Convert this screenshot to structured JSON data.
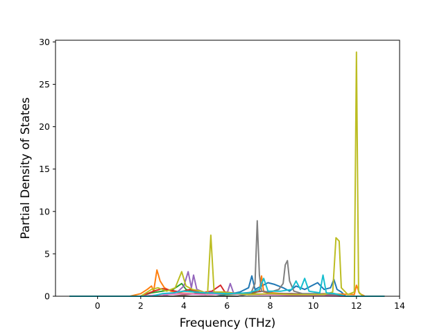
{
  "chart_data": {
    "type": "line",
    "xlabel": "Frequency (THz)",
    "ylabel": "Partial Density of States",
    "xlim": [
      -1.95,
      14.0
    ],
    "ylim": [
      0,
      30.2
    ],
    "xticks": [
      0,
      2,
      4,
      6,
      8,
      10,
      12,
      14
    ],
    "yticks": [
      0,
      5,
      10,
      15,
      20,
      25,
      30
    ],
    "grid": false,
    "legend": "none",
    "series": [
      {
        "color": "#1f77b4",
        "points": [
          [
            -1.3,
            0
          ],
          [
            5.5,
            0
          ],
          [
            6.2,
            0.3
          ],
          [
            6.6,
            0.5
          ],
          [
            7.0,
            1.0
          ],
          [
            7.15,
            2.4
          ],
          [
            7.3,
            0.8
          ],
          [
            7.6,
            1.2
          ],
          [
            7.9,
            1.6
          ],
          [
            8.2,
            1.4
          ],
          [
            8.6,
            1.0
          ],
          [
            8.9,
            0.6
          ],
          [
            9.2,
            1.2
          ],
          [
            9.6,
            0.8
          ],
          [
            9.9,
            1.2
          ],
          [
            10.2,
            1.6
          ],
          [
            10.5,
            0.8
          ],
          [
            10.8,
            1.0
          ],
          [
            10.95,
            2.0
          ],
          [
            11.1,
            0.8
          ],
          [
            11.3,
            0.5
          ],
          [
            11.5,
            0
          ],
          [
            13.3,
            0
          ]
        ]
      },
      {
        "color": "#ff7f0e",
        "points": [
          [
            -1.3,
            0
          ],
          [
            1.5,
            0
          ],
          [
            2.0,
            0.3
          ],
          [
            2.3,
            0.8
          ],
          [
            2.5,
            1.2
          ],
          [
            2.6,
            0.6
          ],
          [
            2.75,
            3.1
          ],
          [
            2.9,
            1.8
          ],
          [
            3.1,
            1.0
          ],
          [
            3.4,
            0.6
          ],
          [
            3.8,
            0.4
          ],
          [
            4.3,
            0.3
          ],
          [
            5.0,
            0.2
          ],
          [
            6.0,
            0.3
          ],
          [
            7.0,
            0.2
          ],
          [
            7.5,
            0.6
          ],
          [
            7.6,
            2.4
          ],
          [
            7.7,
            0.5
          ],
          [
            9.0,
            0.2
          ],
          [
            10.5,
            0.3
          ],
          [
            11.9,
            0.2
          ],
          [
            12.0,
            1.3
          ],
          [
            12.15,
            0.3
          ],
          [
            12.4,
            0
          ],
          [
            13.3,
            0
          ]
        ]
      },
      {
        "color": "#2ca02c",
        "points": [
          [
            -1.3,
            0
          ],
          [
            2.0,
            0
          ],
          [
            2.5,
            0.4
          ],
          [
            3.0,
            0.6
          ],
          [
            3.5,
            0.8
          ],
          [
            3.9,
            1.5
          ],
          [
            4.1,
            0.8
          ],
          [
            4.6,
            0.4
          ],
          [
            5.0,
            0.3
          ],
          [
            6.0,
            0.2
          ],
          [
            7.0,
            0.3
          ],
          [
            8.0,
            0.2
          ],
          [
            9.0,
            0.2
          ],
          [
            10.0,
            0.2
          ],
          [
            11.5,
            0
          ],
          [
            13.3,
            0
          ]
        ]
      },
      {
        "color": "#d62728",
        "points": [
          [
            -1.3,
            0
          ],
          [
            2.0,
            0
          ],
          [
            2.6,
            0.6
          ],
          [
            3.0,
            0.9
          ],
          [
            3.4,
            0.7
          ],
          [
            3.8,
            0.5
          ],
          [
            4.3,
            0.8
          ],
          [
            4.8,
            0.4
          ],
          [
            5.3,
            0.6
          ],
          [
            5.7,
            1.3
          ],
          [
            5.9,
            0.5
          ],
          [
            6.5,
            0.3
          ],
          [
            7.5,
            0.2
          ],
          [
            8.5,
            0.3
          ],
          [
            10.0,
            0.2
          ],
          [
            11.5,
            0
          ],
          [
            13.3,
            0
          ]
        ]
      },
      {
        "color": "#9467bd",
        "points": [
          [
            -1.3,
            0
          ],
          [
            3.0,
            0
          ],
          [
            3.7,
            0.5
          ],
          [
            4.0,
            1.2
          ],
          [
            4.2,
            2.9
          ],
          [
            4.35,
            1.0
          ],
          [
            4.45,
            2.5
          ],
          [
            4.6,
            0.8
          ],
          [
            5.0,
            0.4
          ],
          [
            5.5,
            0.5
          ],
          [
            6.0,
            0.3
          ],
          [
            6.15,
            1.5
          ],
          [
            6.3,
            0.4
          ],
          [
            7.0,
            0.2
          ],
          [
            9.0,
            0.2
          ],
          [
            10.0,
            0.2
          ],
          [
            11.5,
            0
          ],
          [
            13.3,
            0
          ]
        ]
      },
      {
        "color": "#8c564b",
        "points": [
          [
            -1.3,
            0
          ],
          [
            3.5,
            0
          ],
          [
            4.5,
            0.3
          ],
          [
            5.5,
            0.4
          ],
          [
            6.5,
            0.3
          ],
          [
            7.3,
            0.5
          ],
          [
            7.7,
            0.6
          ],
          [
            8.0,
            0.3
          ],
          [
            9.0,
            0.3
          ],
          [
            10.0,
            0.2
          ],
          [
            11.5,
            0
          ],
          [
            13.3,
            0
          ]
        ]
      },
      {
        "color": "#e377c2",
        "points": [
          [
            -1.3,
            0
          ],
          [
            2.0,
            0
          ],
          [
            3.0,
            0.2
          ],
          [
            4.0,
            0.3
          ],
          [
            5.0,
            0.2
          ],
          [
            6.0,
            0.3
          ],
          [
            7.0,
            0.2
          ],
          [
            8.0,
            0.2
          ],
          [
            9.0,
            0.1
          ],
          [
            11.5,
            0
          ],
          [
            13.3,
            0
          ]
        ]
      },
      {
        "color": "#7f7f7f",
        "points": [
          [
            -1.3,
            0
          ],
          [
            6.5,
            0
          ],
          [
            7.1,
            0.3
          ],
          [
            7.3,
            1.5
          ],
          [
            7.4,
            8.9
          ],
          [
            7.5,
            2.5
          ],
          [
            7.6,
            0.6
          ],
          [
            8.0,
            0.5
          ],
          [
            8.4,
            0.8
          ],
          [
            8.6,
            1.5
          ],
          [
            8.7,
            3.7
          ],
          [
            8.8,
            4.2
          ],
          [
            8.9,
            1.8
          ],
          [
            9.1,
            0.6
          ],
          [
            9.5,
            0.3
          ],
          [
            10.2,
            0.3
          ],
          [
            11.0,
            0.2
          ],
          [
            11.5,
            0
          ],
          [
            13.3,
            0
          ]
        ]
      },
      {
        "color": "#bcbd22",
        "points": [
          [
            -1.3,
            0
          ],
          [
            2.0,
            0
          ],
          [
            2.5,
            0.8
          ],
          [
            2.8,
            1.0
          ],
          [
            3.2,
            0.6
          ],
          [
            3.6,
            1.0
          ],
          [
            3.9,
            2.9
          ],
          [
            4.1,
            1.2
          ],
          [
            4.4,
            0.8
          ],
          [
            4.8,
            0.6
          ],
          [
            5.1,
            0.3
          ],
          [
            5.25,
            7.2
          ],
          [
            5.4,
            0.5
          ],
          [
            5.8,
            0.5
          ],
          [
            6.5,
            0.3
          ],
          [
            7.0,
            0.2
          ],
          [
            8.0,
            0.3
          ],
          [
            9.0,
            0.2
          ],
          [
            10.5,
            0.2
          ],
          [
            10.9,
            0.5
          ],
          [
            11.05,
            6.9
          ],
          [
            11.2,
            6.5
          ],
          [
            11.3,
            1.0
          ],
          [
            11.6,
            0.2
          ],
          [
            11.9,
            0.5
          ],
          [
            12.0,
            28.8
          ],
          [
            12.1,
            0.5
          ],
          [
            12.3,
            0
          ],
          [
            13.3,
            0
          ]
        ]
      },
      {
        "color": "#17becf",
        "points": [
          [
            -1.3,
            0
          ],
          [
            2.5,
            0
          ],
          [
            3.0,
            0.3
          ],
          [
            3.5,
            0.4
          ],
          [
            4.0,
            0.6
          ],
          [
            5.0,
            0.4
          ],
          [
            6.0,
            0.3
          ],
          [
            7.0,
            0.4
          ],
          [
            7.5,
            0.8
          ],
          [
            7.7,
            2.1
          ],
          [
            7.9,
            0.6
          ],
          [
            8.5,
            0.6
          ],
          [
            9.0,
            0.8
          ],
          [
            9.2,
            1.8
          ],
          [
            9.4,
            0.8
          ],
          [
            9.6,
            2.1
          ],
          [
            9.8,
            0.6
          ],
          [
            10.3,
            0.4
          ],
          [
            10.45,
            2.5
          ],
          [
            10.6,
            0.4
          ],
          [
            11.0,
            0.3
          ],
          [
            11.5,
            0
          ],
          [
            13.3,
            0
          ]
        ]
      }
    ]
  }
}
